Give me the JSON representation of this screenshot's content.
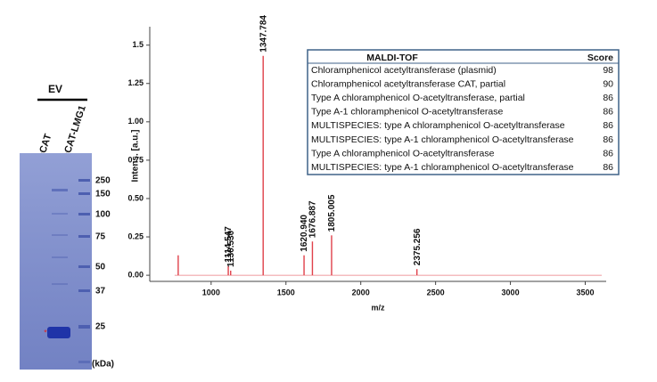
{
  "gel": {
    "title": "EV",
    "lanes": [
      "pCAT",
      "pCAT-LMG1"
    ],
    "markers": [
      "250",
      "150",
      "100",
      "75",
      "50",
      "37",
      "25"
    ],
    "unit": "(kDa)"
  },
  "chart_data": {
    "type": "spectrum",
    "xlabel": "m/z",
    "ylabel": "Intens. [a.u.]",
    "x": [
      780,
      1114.547,
      1130.53,
      1347.784,
      1620.94,
      1676.887,
      1805.005,
      2375.256
    ],
    "values": [
      0.13,
      0.06,
      0.03,
      1.43,
      0.13,
      0.22,
      0.26,
      0.04
    ],
    "value_labels": [
      null,
      "1114.547",
      "1130.530",
      "1347.784",
      "1620.940",
      "1676.887",
      "1805.005",
      "2375.256"
    ],
    "color": "#e0404a",
    "xlim": [
      590,
      3640
    ],
    "ylim": [
      -0.04,
      1.62
    ],
    "xticks": [
      1000,
      1500,
      2000,
      2500,
      3000,
      3500
    ],
    "yticks": [
      {
        "value": 0,
        "label": "0.00"
      },
      0.25,
      {
        "value": 0.5,
        "label": "0.50"
      },
      0.75,
      {
        "value": 1,
        "label": "1.00"
      },
      1.25,
      1.5
    ]
  },
  "table": {
    "header": [
      "MALDI-TOF",
      "Score"
    ],
    "rows": [
      [
        "Chloramphenicol acetyltransferase (plasmid)",
        98
      ],
      [
        "Chloramphenicol acetyltransferase CAT, partial",
        90
      ],
      [
        "Type A chloramphenicol O-acetyltransferase, partial",
        86
      ],
      [
        "Type A-1 chloramphenicol O-acetyltransferase",
        86
      ],
      [
        "MULTISPECIES: type A chloramphenicol O-acetyltransferase",
        86
      ],
      [
        "MULTISPECIES: type A-1 chloramphenicol O-acetyltransferase",
        86
      ],
      [
        "Type A chloramphenicol O-acetyltransferase",
        86
      ],
      [
        "MULTISPECIES: type A-1 chloramphenicol O-acetyltransferase",
        86
      ]
    ]
  }
}
